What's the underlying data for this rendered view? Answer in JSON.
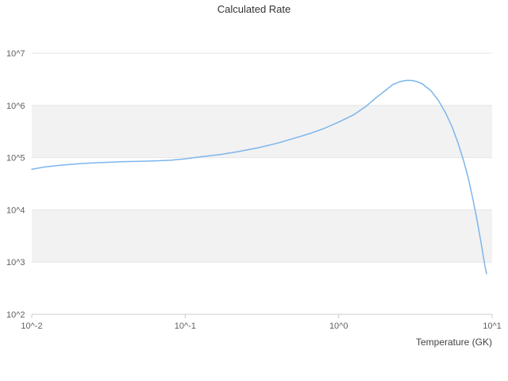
{
  "chart_data": {
    "type": "line",
    "title": "Calculated Rate",
    "xlabel": "Temperature (GK)",
    "ylabel": "",
    "x_scale": "log",
    "y_scale": "log",
    "xlim": [
      0.01,
      10
    ],
    "ylim": [
      100,
      10000000
    ],
    "x_tick_labels": [
      "10^-2",
      "10^-1",
      "10^0",
      "10^1"
    ],
    "x_tick_exponents": [
      -2,
      -1,
      0,
      1
    ],
    "y_tick_labels": [
      "10^2",
      "10^3",
      "10^4",
      "10^5",
      "10^6",
      "10^7"
    ],
    "y_tick_exponents": [
      2,
      3,
      4,
      5,
      6,
      7
    ],
    "grid": "horizontal",
    "legend": "none",
    "band_exponent_ranges": [
      [
        3,
        4
      ],
      [
        5,
        6
      ]
    ],
    "colors": {
      "line": "#7cb5ec",
      "band": "#f2f2f2",
      "grid": "#e6e6e6",
      "axis_line": "#cccccc",
      "tick_label": "#606060",
      "title": "#333333"
    },
    "series": [
      {
        "name": "Calculated Rate",
        "x": [
          0.01,
          0.012,
          0.015,
          0.02,
          0.025,
          0.03,
          0.04,
          0.05,
          0.065,
          0.08,
          0.1,
          0.13,
          0.17,
          0.22,
          0.3,
          0.4,
          0.5,
          0.65,
          0.8,
          1.0,
          1.25,
          1.5,
          1.75,
          2.0,
          2.25,
          2.5,
          2.75,
          3.0,
          3.25,
          3.5,
          4.0,
          4.5,
          5.0,
          5.5,
          6.0,
          6.5,
          7.0,
          7.5,
          8.0,
          8.5,
          9.0,
          9.2
        ],
        "y": [
          60000,
          66000,
          71000,
          76000,
          79000,
          81000,
          84000,
          85000,
          87000,
          89000,
          95000,
          105000,
          115000,
          130000,
          155000,
          190000,
          230000,
          290000,
          360000,
          480000,
          660000,
          950000,
          1400000,
          1900000,
          2500000,
          2850000,
          3000000,
          3000000,
          2850000,
          2600000,
          1900000,
          1200000,
          700000,
          380000,
          190000,
          90000,
          40000,
          16000,
          6000,
          2200,
          800,
          600
        ]
      }
    ]
  }
}
